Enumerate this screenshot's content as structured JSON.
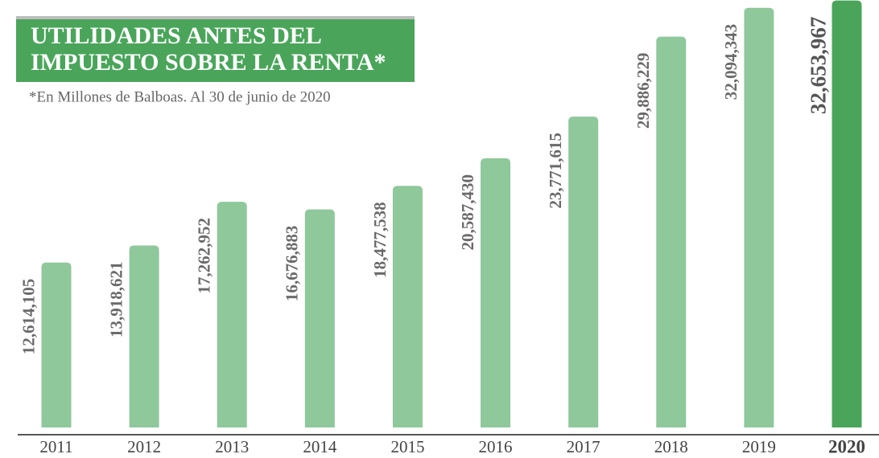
{
  "chart_data": {
    "type": "bar",
    "title": [
      "UTILIDADES ANTES DEL",
      "IMPUESTO SOBRE LA RENTA*"
    ],
    "subtitle": "*En Millones de Balboas. Al 30 de junio de 2020",
    "categories": [
      "2011",
      "2012",
      "2013",
      "2014",
      "2015",
      "2016",
      "2017",
      "2018",
      "2019",
      "2020"
    ],
    "values": [
      12614105,
      13918621,
      17262952,
      16676883,
      18477538,
      20587430,
      23771615,
      29886229,
      32094343,
      32653967
    ],
    "value_labels": [
      "12,614,105",
      "13,918,621",
      "17,262,952",
      "16,676,883",
      "18,477,538",
      "20,587,430",
      "23,771,615",
      "29,886,229",
      "32,094,343",
      "32,653,967"
    ],
    "colors": [
      "#8fc89b",
      "#8fc89b",
      "#8fc89b",
      "#8fc89b",
      "#8fc89b",
      "#8fc89b",
      "#8fc89b",
      "#8fc89b",
      "#8fc89b",
      "#4aa55a"
    ],
    "highlight_color": "#4aa55a",
    "ylim": [
      0,
      33000000
    ]
  }
}
